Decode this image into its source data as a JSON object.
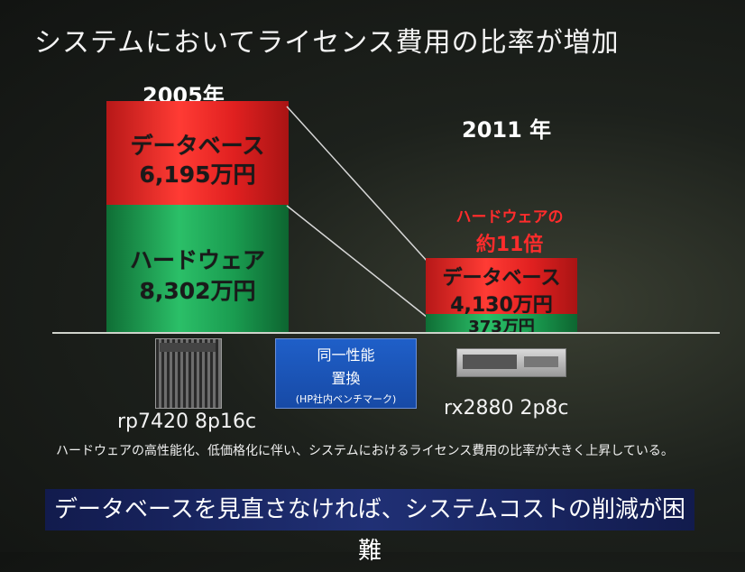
{
  "title": "システムにおいてライセンス費用の比率が増加",
  "left": {
    "year": "2005年",
    "db_label": "データベース",
    "db_value": "6,195万円",
    "hw_label": "ハードウェア",
    "hw_value": "8,302万円",
    "server": "rp7420 8p16c"
  },
  "right": {
    "year": "2011 年",
    "callout_line1": "ハードウェアの",
    "callout_line2": "約11倍",
    "db_label": "データベース",
    "db_value": "4,130万円",
    "hw_value": "373万円",
    "server": "rx2880 2p8c"
  },
  "compare_box": {
    "line1": "同一性能",
    "line2": "置換",
    "line3": "(HP社内ベンチマーク)"
  },
  "note": "ハードウェアの高性能化、低価格化に伴い、システムにおけるライセンス費用の比率が大きく上昇している。",
  "banner": "データベースを見直さなければ、システムコストの削減が困難",
  "colors": {
    "db_red": "#e52a2a",
    "hw_green": "#1f9a52",
    "banner": "#203075",
    "compare": "#1f5fc8"
  }
}
